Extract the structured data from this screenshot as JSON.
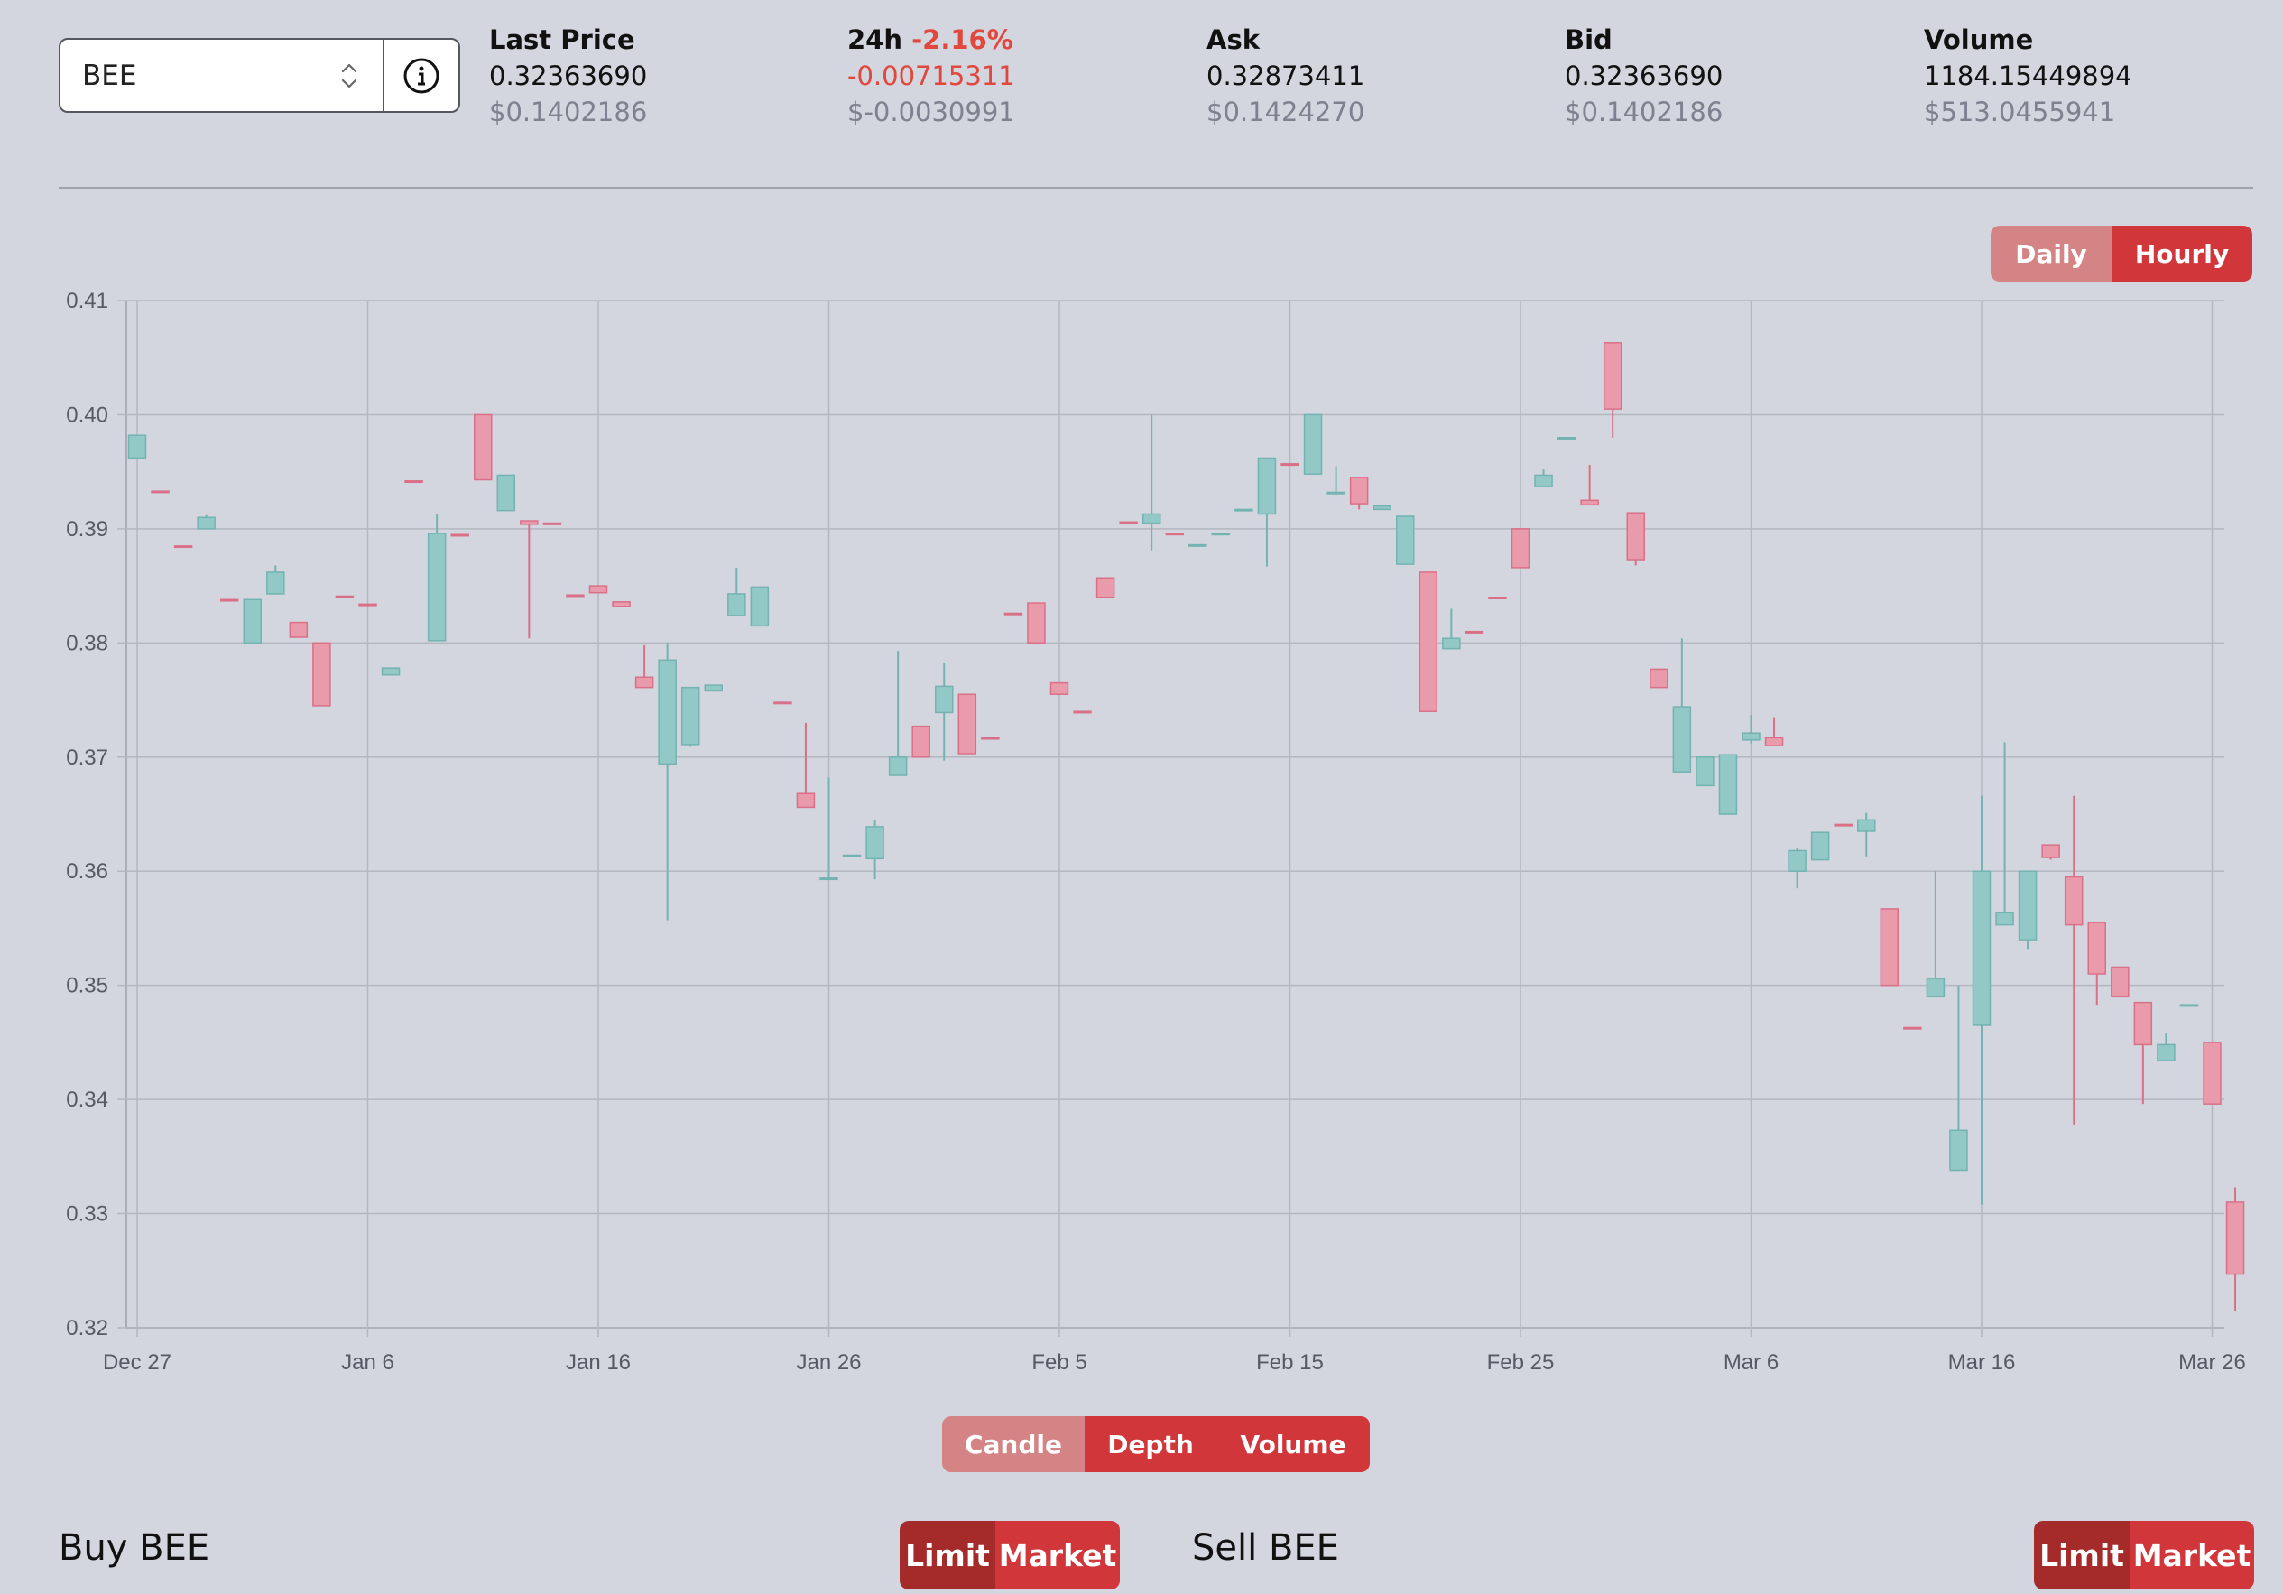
{
  "market": {
    "symbol": "BEE",
    "selector_icon": "chevron-updown-icon",
    "info_icon": "info-icon"
  },
  "stats": {
    "last_price": {
      "label": "Last Price",
      "value": "0.32363690",
      "usd": "$0.1402186"
    },
    "change_24h": {
      "label": "24h",
      "percent": "-2.16%",
      "value": "-0.00715311",
      "usd": "$-0.0030991"
    },
    "ask": {
      "label": "Ask",
      "value": "0.32873411",
      "usd": "$0.1424270"
    },
    "bid": {
      "label": "Bid",
      "value": "0.32363690",
      "usd": "$0.1402186"
    },
    "volume": {
      "label": "Volume",
      "value": "1184.15449894",
      "usd": "$513.0455941"
    }
  },
  "interval_toggle": {
    "daily": "Daily",
    "hourly": "Hourly",
    "active": "Hourly"
  },
  "chart_tabs": {
    "candle": "Candle",
    "depth": "Depth",
    "volume": "Volume",
    "active": "Candle"
  },
  "buy_panel": {
    "title": "Buy BEE",
    "limit": "Limit",
    "market": "Market"
  },
  "sell_panel": {
    "title": "Sell BEE",
    "limit": "Limit",
    "market": "Market"
  },
  "colors": {
    "up": "#92c8c6",
    "up_stroke": "#73b3b1",
    "down": "#e99aab",
    "down_stroke": "#d97088",
    "accent": "#d0363a"
  },
  "chart_data": {
    "type": "candlestick",
    "ylim": [
      0.32,
      0.41
    ],
    "yticks": [
      "0.41",
      "0.40",
      "0.39",
      "0.38",
      "0.37",
      "0.36",
      "0.35",
      "0.34",
      "0.33",
      "0.32"
    ],
    "xticks": [
      "Dec 27",
      "Jan 6",
      "Jan 16",
      "Jan 26",
      "Feb 5",
      "Feb 15",
      "Feb 25",
      "Mar 6",
      "Mar 16",
      "Mar 26"
    ],
    "grid": true,
    "candles": [
      {
        "day": 0,
        "o": 0.3962,
        "h": 0.3982,
        "l": 0.3962,
        "c": 0.3982
      },
      {
        "day": 1,
        "o": 0.3933,
        "h": 0.3933,
        "l": 0.3932,
        "c": 0.3932
      },
      {
        "day": 2,
        "o": 0.3885,
        "h": 0.3885,
        "l": 0.3884,
        "c": 0.3884
      },
      {
        "day": 3,
        "o": 0.39,
        "h": 0.3912,
        "l": 0.39,
        "c": 0.391
      },
      {
        "day": 4,
        "o": 0.3838,
        "h": 0.3838,
        "l": 0.3837,
        "c": 0.3837
      },
      {
        "day": 5,
        "o": 0.38,
        "h": 0.3838,
        "l": 0.38,
        "c": 0.3838
      },
      {
        "day": 6,
        "o": 0.3843,
        "h": 0.3868,
        "l": 0.3843,
        "c": 0.3862
      },
      {
        "day": 7,
        "o": 0.3818,
        "h": 0.3818,
        "l": 0.3805,
        "c": 0.3805
      },
      {
        "day": 8,
        "o": 0.38,
        "h": 0.38,
        "l": 0.3745,
        "c": 0.3745
      },
      {
        "day": 9,
        "o": 0.3841,
        "h": 0.3841,
        "l": 0.384,
        "c": 0.384
      },
      {
        "day": 10,
        "o": 0.3834,
        "h": 0.3834,
        "l": 0.3833,
        "c": 0.3833
      },
      {
        "day": 11,
        "o": 0.3772,
        "h": 0.3778,
        "l": 0.3772,
        "c": 0.3778
      },
      {
        "day": 12,
        "o": 0.3942,
        "h": 0.3942,
        "l": 0.3941,
        "c": 0.3941
      },
      {
        "day": 13,
        "o": 0.3802,
        "h": 0.3913,
        "l": 0.3802,
        "c": 0.3896
      },
      {
        "day": 14,
        "o": 0.3895,
        "h": 0.3895,
        "l": 0.3894,
        "c": 0.3894
      },
      {
        "day": 15,
        "o": 0.4,
        "h": 0.4,
        "l": 0.3943,
        "c": 0.3943
      },
      {
        "day": 16,
        "o": 0.3916,
        "h": 0.3947,
        "l": 0.3916,
        "c": 0.3947
      },
      {
        "day": 17,
        "o": 0.3907,
        "h": 0.3907,
        "l": 0.3804,
        "c": 0.3904
      },
      {
        "day": 18,
        "o": 0.3905,
        "h": 0.3905,
        "l": 0.3904,
        "c": 0.3904
      },
      {
        "day": 19,
        "o": 0.3842,
        "h": 0.3842,
        "l": 0.3841,
        "c": 0.3841
      },
      {
        "day": 20,
        "o": 0.385,
        "h": 0.385,
        "l": 0.3844,
        "c": 0.3844
      },
      {
        "day": 21,
        "o": 0.3836,
        "h": 0.3836,
        "l": 0.3832,
        "c": 0.3832
      },
      {
        "day": 22,
        "o": 0.377,
        "h": 0.3798,
        "l": 0.3761,
        "c": 0.3761
      },
      {
        "day": 23,
        "o": 0.3694,
        "h": 0.38,
        "l": 0.3557,
        "c": 0.3785
      },
      {
        "day": 24,
        "o": 0.3711,
        "h": 0.3761,
        "l": 0.3709,
        "c": 0.3761
      },
      {
        "day": 25,
        "o": 0.3758,
        "h": 0.3763,
        "l": 0.3758,
        "c": 0.3763
      },
      {
        "day": 26,
        "o": 0.3824,
        "h": 0.3866,
        "l": 0.3824,
        "c": 0.3843
      },
      {
        "day": 27,
        "o": 0.3815,
        "h": 0.3849,
        "l": 0.3815,
        "c": 0.3849
      },
      {
        "day": 28,
        "o": 0.3748,
        "h": 0.3748,
        "l": 0.3747,
        "c": 0.3747
      },
      {
        "day": 29,
        "o": 0.3668,
        "h": 0.373,
        "l": 0.3656,
        "c": 0.3656
      },
      {
        "day": 30,
        "o": 0.3594,
        "h": 0.3682,
        "l": 0.3593,
        "c": 0.3594
      },
      {
        "day": 31,
        "o": 0.3614,
        "h": 0.3614,
        "l": 0.3613,
        "c": 0.3614
      },
      {
        "day": 32,
        "o": 0.3611,
        "h": 0.3645,
        "l": 0.3593,
        "c": 0.3639
      },
      {
        "day": 33,
        "o": 0.3684,
        "h": 0.3793,
        "l": 0.3684,
        "c": 0.37
      },
      {
        "day": 34,
        "o": 0.3727,
        "h": 0.3727,
        "l": 0.37,
        "c": 0.37
      },
      {
        "day": 35,
        "o": 0.3739,
        "h": 0.3783,
        "l": 0.3697,
        "c": 0.3762
      },
      {
        "day": 36,
        "o": 0.3755,
        "h": 0.3755,
        "l": 0.3703,
        "c": 0.3703
      },
      {
        "day": 37,
        "o": 0.3717,
        "h": 0.3717,
        "l": 0.3716,
        "c": 0.3716
      },
      {
        "day": 38,
        "o": 0.3826,
        "h": 0.3826,
        "l": 0.3825,
        "c": 0.3825
      },
      {
        "day": 39,
        "o": 0.3835,
        "h": 0.3835,
        "l": 0.38,
        "c": 0.38
      },
      {
        "day": 40,
        "o": 0.3765,
        "h": 0.3765,
        "l": 0.3755,
        "c": 0.3755
      },
      {
        "day": 41,
        "o": 0.374,
        "h": 0.374,
        "l": 0.3739,
        "c": 0.3739
      },
      {
        "day": 42,
        "o": 0.3857,
        "h": 0.3857,
        "l": 0.384,
        "c": 0.384
      },
      {
        "day": 43,
        "o": 0.3906,
        "h": 0.3906,
        "l": 0.3905,
        "c": 0.3905
      },
      {
        "day": 44,
        "o": 0.3905,
        "h": 0.4,
        "l": 0.3881,
        "c": 0.3913
      },
      {
        "day": 45,
        "o": 0.3896,
        "h": 0.3896,
        "l": 0.3895,
        "c": 0.3895
      },
      {
        "day": 46,
        "o": 0.3885,
        "h": 0.3886,
        "l": 0.3885,
        "c": 0.3886
      },
      {
        "day": 47,
        "o": 0.3896,
        "h": 0.3896,
        "l": 0.3895,
        "c": 0.3896
      },
      {
        "day": 48,
        "o": 0.3917,
        "h": 0.3917,
        "l": 0.3916,
        "c": 0.3917
      },
      {
        "day": 49,
        "o": 0.3913,
        "h": 0.3962,
        "l": 0.3867,
        "c": 0.3962
      },
      {
        "day": 50,
        "o": 0.3957,
        "h": 0.3957,
        "l": 0.3956,
        "c": 0.3956
      },
      {
        "day": 51,
        "o": 0.3948,
        "h": 0.4,
        "l": 0.3948,
        "c": 0.4
      },
      {
        "day": 52,
        "o": 0.3932,
        "h": 0.3955,
        "l": 0.393,
        "c": 0.3932
      },
      {
        "day": 53,
        "o": 0.3945,
        "h": 0.3945,
        "l": 0.3917,
        "c": 0.3922
      },
      {
        "day": 54,
        "o": 0.3917,
        "h": 0.392,
        "l": 0.3917,
        "c": 0.392
      },
      {
        "day": 55,
        "o": 0.3869,
        "h": 0.3911,
        "l": 0.3869,
        "c": 0.3911
      },
      {
        "day": 56,
        "o": 0.3862,
        "h": 0.3862,
        "l": 0.374,
        "c": 0.374
      },
      {
        "day": 57,
        "o": 0.3795,
        "h": 0.383,
        "l": 0.3795,
        "c": 0.3804
      },
      {
        "day": 58,
        "o": 0.381,
        "h": 0.381,
        "l": 0.3809,
        "c": 0.3809
      },
      {
        "day": 59,
        "o": 0.384,
        "h": 0.384,
        "l": 0.3839,
        "c": 0.3839
      },
      {
        "day": 60,
        "o": 0.39,
        "h": 0.39,
        "l": 0.3866,
        "c": 0.3866
      },
      {
        "day": 61,
        "o": 0.3937,
        "h": 0.3952,
        "l": 0.3937,
        "c": 0.3947
      },
      {
        "day": 62,
        "o": 0.398,
        "h": 0.398,
        "l": 0.3979,
        "c": 0.398
      },
      {
        "day": 63,
        "o": 0.3925,
        "h": 0.3956,
        "l": 0.3921,
        "c": 0.3921
      },
      {
        "day": 64,
        "o": 0.4063,
        "h": 0.4063,
        "l": 0.398,
        "c": 0.4005
      },
      {
        "day": 65,
        "o": 0.3914,
        "h": 0.3914,
        "l": 0.3868,
        "c": 0.3873
      },
      {
        "day": 66,
        "o": 0.3777,
        "h": 0.3777,
        "l": 0.3761,
        "c": 0.3761
      },
      {
        "day": 67,
        "o": 0.3687,
        "h": 0.3804,
        "l": 0.3687,
        "c": 0.3744
      },
      {
        "day": 68,
        "o": 0.3675,
        "h": 0.37,
        "l": 0.3675,
        "c": 0.37
      },
      {
        "day": 69,
        "o": 0.365,
        "h": 0.3702,
        "l": 0.365,
        "c": 0.3702
      },
      {
        "day": 70,
        "o": 0.3715,
        "h": 0.3737,
        "l": 0.3712,
        "c": 0.3721
      },
      {
        "day": 71,
        "o": 0.3717,
        "h": 0.3735,
        "l": 0.371,
        "c": 0.371
      },
      {
        "day": 72,
        "o": 0.36,
        "h": 0.362,
        "l": 0.3585,
        "c": 0.3618
      },
      {
        "day": 73,
        "o": 0.361,
        "h": 0.3634,
        "l": 0.361,
        "c": 0.3634
      },
      {
        "day": 74,
        "o": 0.3641,
        "h": 0.3641,
        "l": 0.364,
        "c": 0.364
      },
      {
        "day": 75,
        "o": 0.3635,
        "h": 0.3651,
        "l": 0.3613,
        "c": 0.3645
      },
      {
        "day": 76,
        "o": 0.3567,
        "h": 0.3567,
        "l": 0.35,
        "c": 0.35
      },
      {
        "day": 77,
        "o": 0.3463,
        "h": 0.3463,
        "l": 0.3462,
        "c": 0.3462
      },
      {
        "day": 78,
        "o": 0.349,
        "h": 0.36,
        "l": 0.349,
        "c": 0.3506
      },
      {
        "day": 79,
        "o": 0.3338,
        "h": 0.35,
        "l": 0.3338,
        "c": 0.3373
      },
      {
        "day": 80,
        "o": 0.3465,
        "h": 0.3666,
        "l": 0.3308,
        "c": 0.36
      },
      {
        "day": 81,
        "o": 0.3553,
        "h": 0.3713,
        "l": 0.3553,
        "c": 0.3564
      },
      {
        "day": 82,
        "o": 0.354,
        "h": 0.36,
        "l": 0.3532,
        "c": 0.36
      },
      {
        "day": 83,
        "o": 0.3623,
        "h": 0.3623,
        "l": 0.361,
        "c": 0.3612
      },
      {
        "day": 84,
        "o": 0.3595,
        "h": 0.3666,
        "l": 0.3378,
        "c": 0.3553
      },
      {
        "day": 85,
        "o": 0.3555,
        "h": 0.3555,
        "l": 0.3483,
        "c": 0.351
      },
      {
        "day": 86,
        "o": 0.3516,
        "h": 0.3516,
        "l": 0.349,
        "c": 0.349
      },
      {
        "day": 87,
        "o": 0.3485,
        "h": 0.3485,
        "l": 0.3396,
        "c": 0.3448
      },
      {
        "day": 88,
        "o": 0.3434,
        "h": 0.3458,
        "l": 0.3434,
        "c": 0.3448
      },
      {
        "day": 89,
        "o": 0.3483,
        "h": 0.3483,
        "l": 0.3482,
        "c": 0.3483
      },
      {
        "day": 90,
        "o": 0.345,
        "h": 0.345,
        "l": 0.3396,
        "c": 0.3396
      },
      {
        "day": 91,
        "o": 0.331,
        "h": 0.3323,
        "l": 0.3215,
        "c": 0.3247
      }
    ]
  }
}
